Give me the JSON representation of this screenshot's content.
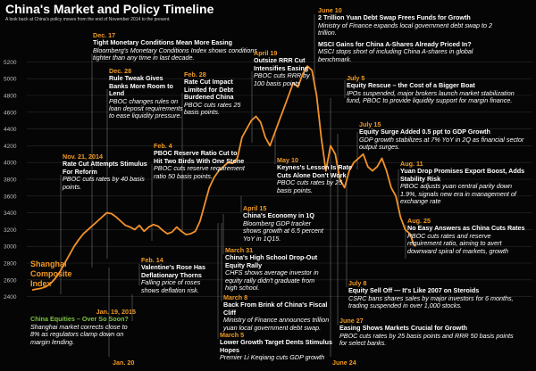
{
  "header": {
    "title": "China's Market and Policy Timeline",
    "subtitle": "A look back at China's policy moves from the end of November 2014 to the present."
  },
  "colors": {
    "line": "#f2922a",
    "accent": "#f29a22",
    "green": "#7ec242",
    "background": "#050505"
  },
  "chart_data": {
    "type": "line",
    "series": [
      {
        "name": "Shanghai Composite Index",
        "values": [
          2480,
          2490,
          2500,
          2520,
          2560,
          2620,
          2700,
          2800,
          2900,
          3000,
          3080,
          3150,
          3200,
          3250,
          3300,
          3350,
          3400,
          3390,
          3350,
          3300,
          3250,
          3230,
          3200,
          3250,
          3180,
          3230,
          3260,
          3240,
          3190,
          3150,
          3170,
          3230,
          3180,
          3140,
          3150,
          3180,
          3300,
          3500,
          3700,
          3820,
          3900,
          3950,
          4000,
          3990,
          4050,
          4300,
          4400,
          4500,
          4550,
          4480,
          4300,
          4200,
          4350,
          4500,
          4650,
          4800,
          4950,
          4900,
          5050,
          5150,
          5100,
          4800,
          4300,
          3900,
          4200,
          4100,
          3800,
          3700,
          3900,
          4000,
          4050,
          4100,
          3950,
          3900,
          3950,
          4050,
          3900,
          3700,
          3600,
          3350,
          3200,
          3150,
          3000
        ]
      }
    ],
    "y_ticks": [
      2400,
      2600,
      2800,
      3000,
      3200,
      3400,
      3600,
      3800,
      4000,
      4200,
      4400,
      4600,
      4800,
      5000,
      5200
    ],
    "ylim": [
      2300,
      5300
    ],
    "annotations": [
      {
        "date": "Nov. 21, 2014",
        "headline": "Rate Cut Attempts Stimulus For Reform",
        "body": "PBOC cuts rates by 40 basis points."
      },
      {
        "date": "Dec. 17",
        "headline": "Tight Monetary Conditions Mean More Easing",
        "body": "Bloomberg's Monetary Conditions Index shows conditions tighter than any time in last decade."
      },
      {
        "date": "Dec. 28",
        "headline": "Rule Tweak Gives Banks More Room to Lend",
        "body": "PBOC changes rules on loan deposit requirements to ease liquidity pressure."
      },
      {
        "date": "Feb. 4",
        "headline": "PBOC Reserve Ratio Cut to Hit Two Birds With One Stone",
        "body": "PBOC cuts reserve requirement ratio 50 basis points."
      },
      {
        "date": "Feb. 28",
        "headline": "Rate Cut Impact Limited for Debt Burdened China",
        "body": "PBOC cuts rates 25 basis points."
      },
      {
        "date": "Feb. 14",
        "headline": "Valentine's Rose Has Deflationary Thorns",
        "body": "Falling price of roses shows deflation risk."
      },
      {
        "date": "March 8",
        "headline": "Back From Brink of China's Fiscal Cliff",
        "body": "Ministry of Finance announces trillion yuan local government debt swap."
      },
      {
        "date": "March 5",
        "headline": "Lower Growth Target Dents Stimulus Hopes",
        "body": "Premier Li Keqiang cuts GDP growth"
      },
      {
        "date": "March 31",
        "headline": "China's High School Drop-Out Equity Rally",
        "body": "CHFS shows average investor in equity rally didn't graduate from high school."
      },
      {
        "date": "April 15",
        "headline": "China's Economy in 1Q",
        "body": "Bloomberg GDP tracker shows growth at 6.5 percent YoY in 1Q15."
      },
      {
        "date": "April 19",
        "headline": "Outsize RRR Cut Intensifies Easing",
        "body": "PBOC cuts RRR by 100 basis points"
      },
      {
        "date": "May 10",
        "headline": "Keynes's Lesson Is Rate Cuts Alone Don't Work",
        "body": "PBOC cuts rates by 25 basis points."
      },
      {
        "date": "June 10",
        "headline": "2 Trillion Yuan Debt Swap Frees Funds for Growth",
        "body": "Ministry of Finance expands local government debt swap to 2 trillion."
      },
      {
        "date": "",
        "headline": "MSCI Gains for China A-Shares Already Priced In?",
        "body": "MSCI stops short of including China A-shares in global benchmark."
      },
      {
        "date": "July 5",
        "headline": "Equity Rescue – the Cost of a Bigger Boat",
        "body": "IPOs suspended, major brokers launch market stabilization fund, PBOC to provide liquidity support for margin finance."
      },
      {
        "date": "July 15",
        "headline": "Equity Surge Added 0.5 ppt to GDP Growth",
        "body": "GDP growth stabilizes at 7% YoY in 2Q as financial sector output surges."
      },
      {
        "date": "Aug. 11",
        "headline": "Yuan Drop Promises Export Boost, Adds Stability Risk",
        "body": "PBOC adjusts yuan central parity down 1.9%, signals new era in management of exchange rate"
      },
      {
        "date": "Aug. 25",
        "headline": "No Easy Answers as China Cuts Rates",
        "body": "PBOC cuts rates and reserve requirement ratio, aiming to avert downward spiral of markets, growth"
      },
      {
        "date": "July 8",
        "headline": "Equity Sell Off — It's Like 2007 on Steroids",
        "body": "CSRC bans shares sales by major investors for 6 months, trading suspended in over 1,000 stocks."
      },
      {
        "date": "June 27",
        "headline": "Easing Shows Markets Crucial for Growth",
        "body": "PBOC cuts rates by 25 basis points and RRR 50 basis points for select banks."
      },
      {
        "date": "Jan. 19, 2015",
        "headline": "China Equities – Over So Soon?",
        "body": "Shanghai market corrects close to 8% as regulators clamp down on margin lending."
      },
      {
        "date": "Jan. 20",
        "headline": "",
        "body": ""
      },
      {
        "date": "June 24",
        "headline": "",
        "body": ""
      }
    ]
  }
}
